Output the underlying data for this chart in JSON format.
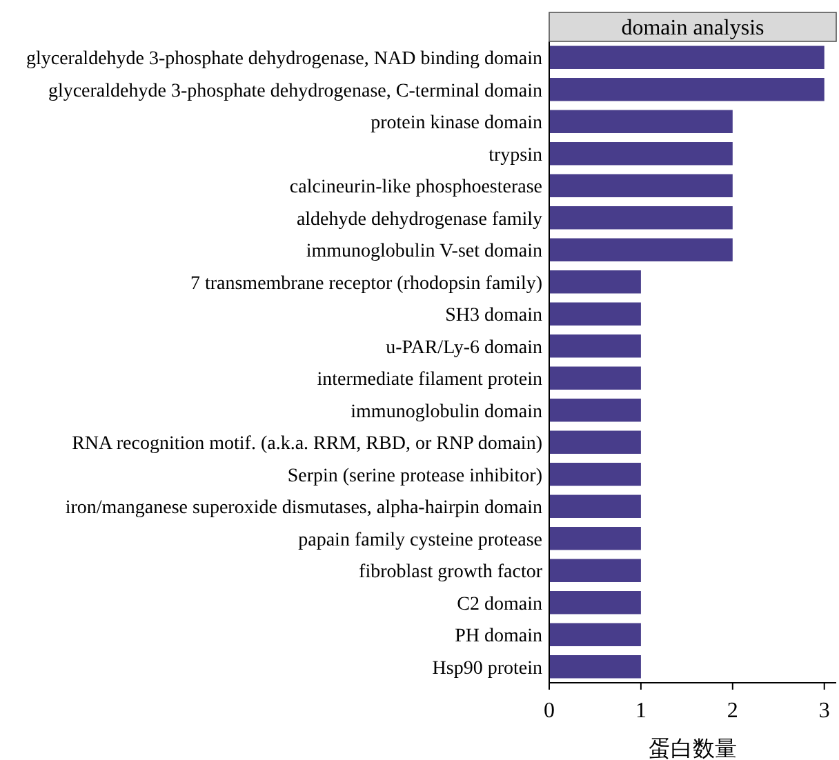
{
  "chart_data": {
    "type": "bar",
    "orientation": "horizontal",
    "title": "domain analysis",
    "xlabel": "蛋白数量",
    "categories": [
      "glyceraldehyde 3-phosphate dehydrogenase, NAD binding domain",
      "glyceraldehyde 3-phosphate dehydrogenase, C-terminal domain",
      "protein kinase domain",
      "trypsin",
      "calcineurin-like phosphoesterase",
      "aldehyde dehydrogenase family",
      "immunoglobulin V-set domain",
      "7 transmembrane receptor (rhodopsin family)",
      "SH3 domain",
      "u-PAR/Ly-6 domain",
      "intermediate filament protein",
      "immunoglobulin domain",
      "RNA recognition motif. (a.k.a. RRM, RBD, or RNP domain)",
      "Serpin (serine protease inhibitor)",
      "iron/manganese superoxide dismutases, alpha-hairpin domain",
      "papain family cysteine protease",
      "fibroblast growth factor",
      "C2 domain",
      "PH domain",
      "Hsp90 protein"
    ],
    "values": [
      3,
      3,
      2,
      2,
      2,
      2,
      2,
      1,
      1,
      1,
      1,
      1,
      1,
      1,
      1,
      1,
      1,
      1,
      1,
      1
    ],
    "color": "#483d8b",
    "xlim": [
      0,
      3.13
    ],
    "xticks": [
      0,
      1,
      2,
      3
    ],
    "grid": false
  }
}
